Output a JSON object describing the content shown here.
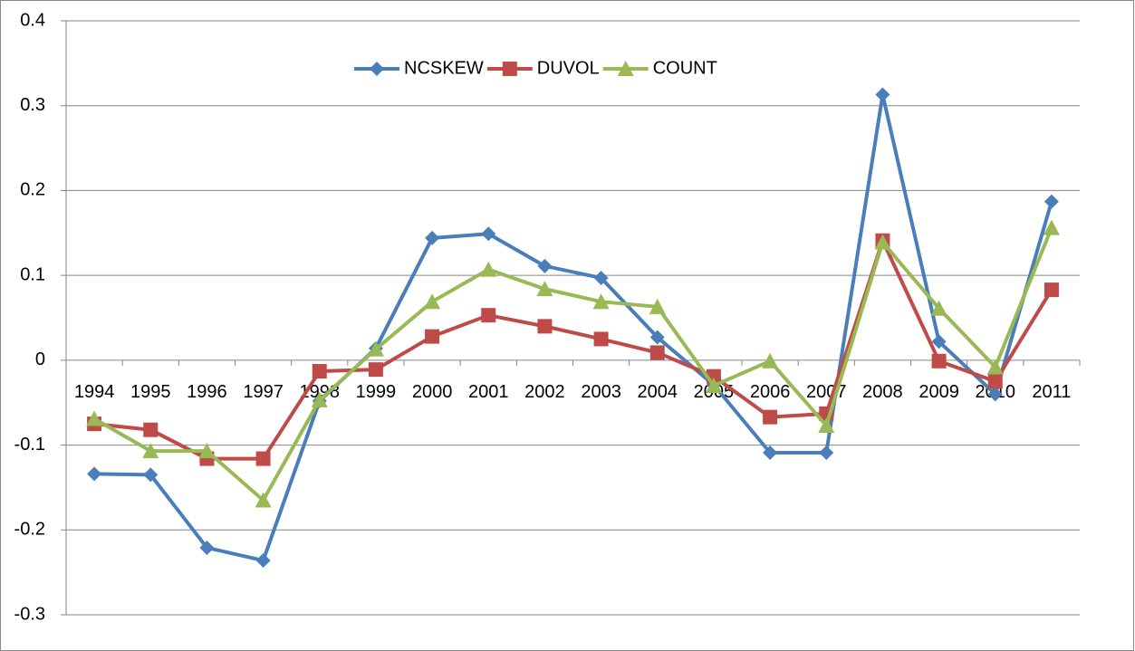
{
  "chart_data": {
    "type": "line",
    "categories": [
      "1994",
      "1995",
      "1996",
      "1997",
      "1998",
      "1999",
      "2000",
      "2001",
      "2002",
      "2003",
      "2004",
      "2005",
      "2006",
      "2007",
      "2008",
      "2009",
      "2010",
      "2011"
    ],
    "series": [
      {
        "name": "NCSKEW",
        "color": "#4a7ebb",
        "marker": "diamond",
        "values": [
          -0.134,
          -0.135,
          -0.221,
          -0.236,
          -0.048,
          0.014,
          0.144,
          0.149,
          0.111,
          0.097,
          0.027,
          -0.029,
          -0.109,
          -0.109,
          0.313,
          0.022,
          -0.04,
          0.187
        ]
      },
      {
        "name": "DUVOL",
        "color": "#be4b48",
        "marker": "square",
        "values": [
          -0.075,
          -0.082,
          -0.116,
          -0.116,
          -0.013,
          -0.011,
          0.028,
          0.053,
          0.04,
          0.025,
          0.009,
          -0.019,
          -0.067,
          -0.063,
          0.141,
          -0.001,
          -0.025,
          0.083
        ]
      },
      {
        "name": "COUNT",
        "color": "#98b954",
        "marker": "triangle",
        "values": [
          -0.069,
          -0.107,
          -0.107,
          -0.165,
          -0.047,
          0.013,
          0.069,
          0.107,
          0.084,
          0.069,
          0.063,
          -0.03,
          -0.001,
          -0.077,
          0.139,
          0.061,
          -0.008,
          0.156
        ]
      }
    ],
    "ylim": [
      -0.3,
      0.4
    ],
    "yticks": [
      -0.3,
      -0.2,
      -0.1,
      0,
      0.1,
      0.2,
      0.3,
      0.4
    ],
    "grid": true,
    "legend": "top"
  }
}
